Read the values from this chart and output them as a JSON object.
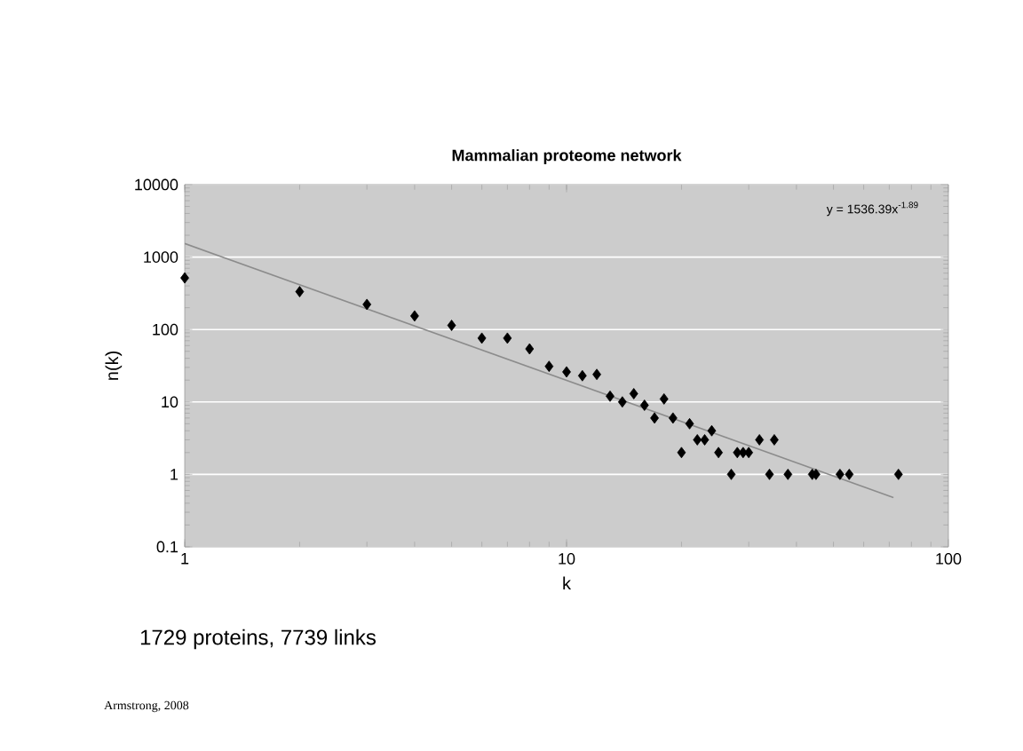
{
  "chart_data": {
    "type": "scatter",
    "title": "Mammalian proteome network",
    "xlabel": "k",
    "ylabel": "n(k)",
    "log": "xy",
    "grid": "y",
    "marker": "diamond",
    "xlim": [
      1,
      100
    ],
    "xticks": [
      1,
      10,
      100
    ],
    "ylim": [
      0.1,
      10000
    ],
    "yticks": [
      0.1,
      1,
      10,
      100,
      1000,
      10000
    ],
    "series": [
      {
        "color": "#000000",
        "x": [
          1,
          2,
          3,
          4,
          5,
          6,
          7,
          8,
          9,
          10,
          11,
          12,
          13,
          14,
          15,
          16,
          17,
          18,
          19,
          20,
          21,
          22,
          23,
          24,
          25,
          27,
          28,
          29,
          30,
          32,
          34,
          35,
          38,
          44,
          45,
          52,
          55,
          74
        ],
        "values": [
          515,
          333,
          222,
          154,
          114,
          76,
          76,
          54,
          31,
          26,
          23,
          24,
          12,
          10,
          13,
          9,
          6,
          11,
          6,
          2,
          5,
          3,
          3,
          4,
          2,
          1,
          2,
          2,
          2,
          3,
          1,
          3,
          1,
          1,
          1,
          1,
          1,
          1
        ]
      },
      {
        "type": "line",
        "color": "#8c8c8c",
        "marker": "none",
        "x": [
          1,
          71.8
        ],
        "values": [
          1536.39,
          0.48
        ]
      }
    ],
    "annotations": [
      "y = 1536.39x$^{-1.89}$",
      "1729 proteins, 7739 links",
      "Armstrong, 2008"
    ]
  }
}
